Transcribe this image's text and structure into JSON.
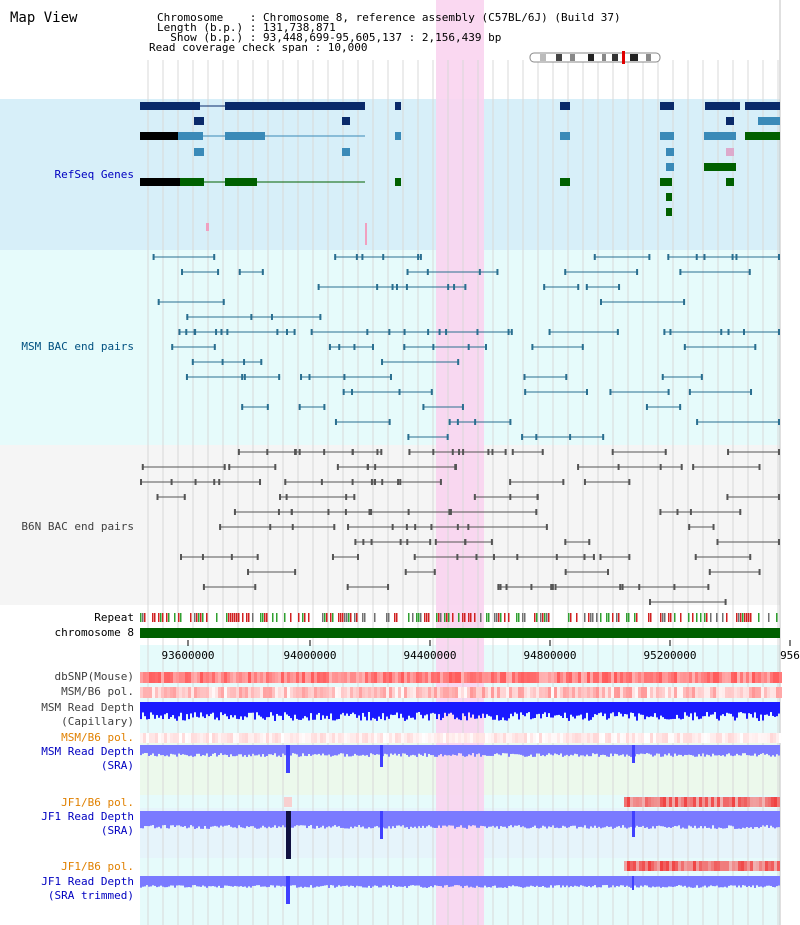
{
  "header": {
    "title": "Map View",
    "chromosome_line": "Chromosome    : Chromosome 8, reference assembly (C57BL/6J) (Build 37)",
    "length_line": "Length (b.p.) : 131,738,871",
    "show_line": "  Show (b.p.) : 93,448,699-95,605,137 : 2,156,439 bp",
    "coverage_line": "Read coverage check span : 10,000"
  },
  "tracks": {
    "refseq": "RefSeq Genes",
    "msm_bac": "MSM BAC end pairs",
    "b6n_bac": "B6N BAC end pairs",
    "repeat": "Repeat",
    "chromosome": "chromosome 8",
    "dbsnp": "dbSNP(Mouse)",
    "msm_b6_pol": "MSM/B6 pol.",
    "msm_depth_cap": "MSM Read Depth\n(Capillary)",
    "msm_b6_pol2": "MSM/B6 pol.",
    "msm_depth_sra": "MSM Read Depth\n(SRA)",
    "jf1_b6_pol": "JF1/B6 pol.",
    "jf1_depth_sra": "JF1 Read Depth\n(SRA)",
    "jf1_b6_pol2": "JF1/B6 pol.",
    "jf1_depth_trim": "JF1 Read Depth\n(SRA trimmed)"
  },
  "axis": {
    "ticks": [
      "93600000",
      "94000000",
      "94400000",
      "94800000",
      "95200000",
      "956"
    ]
  },
  "colors": {
    "refseq_bg": "#d7eff9",
    "bac_bg": "#e6fbfb",
    "highlight": "#f9d4ef",
    "chrom_bar": "#006000",
    "depth": "#1a1aff",
    "sra_depth": "#7a7aff"
  }
}
